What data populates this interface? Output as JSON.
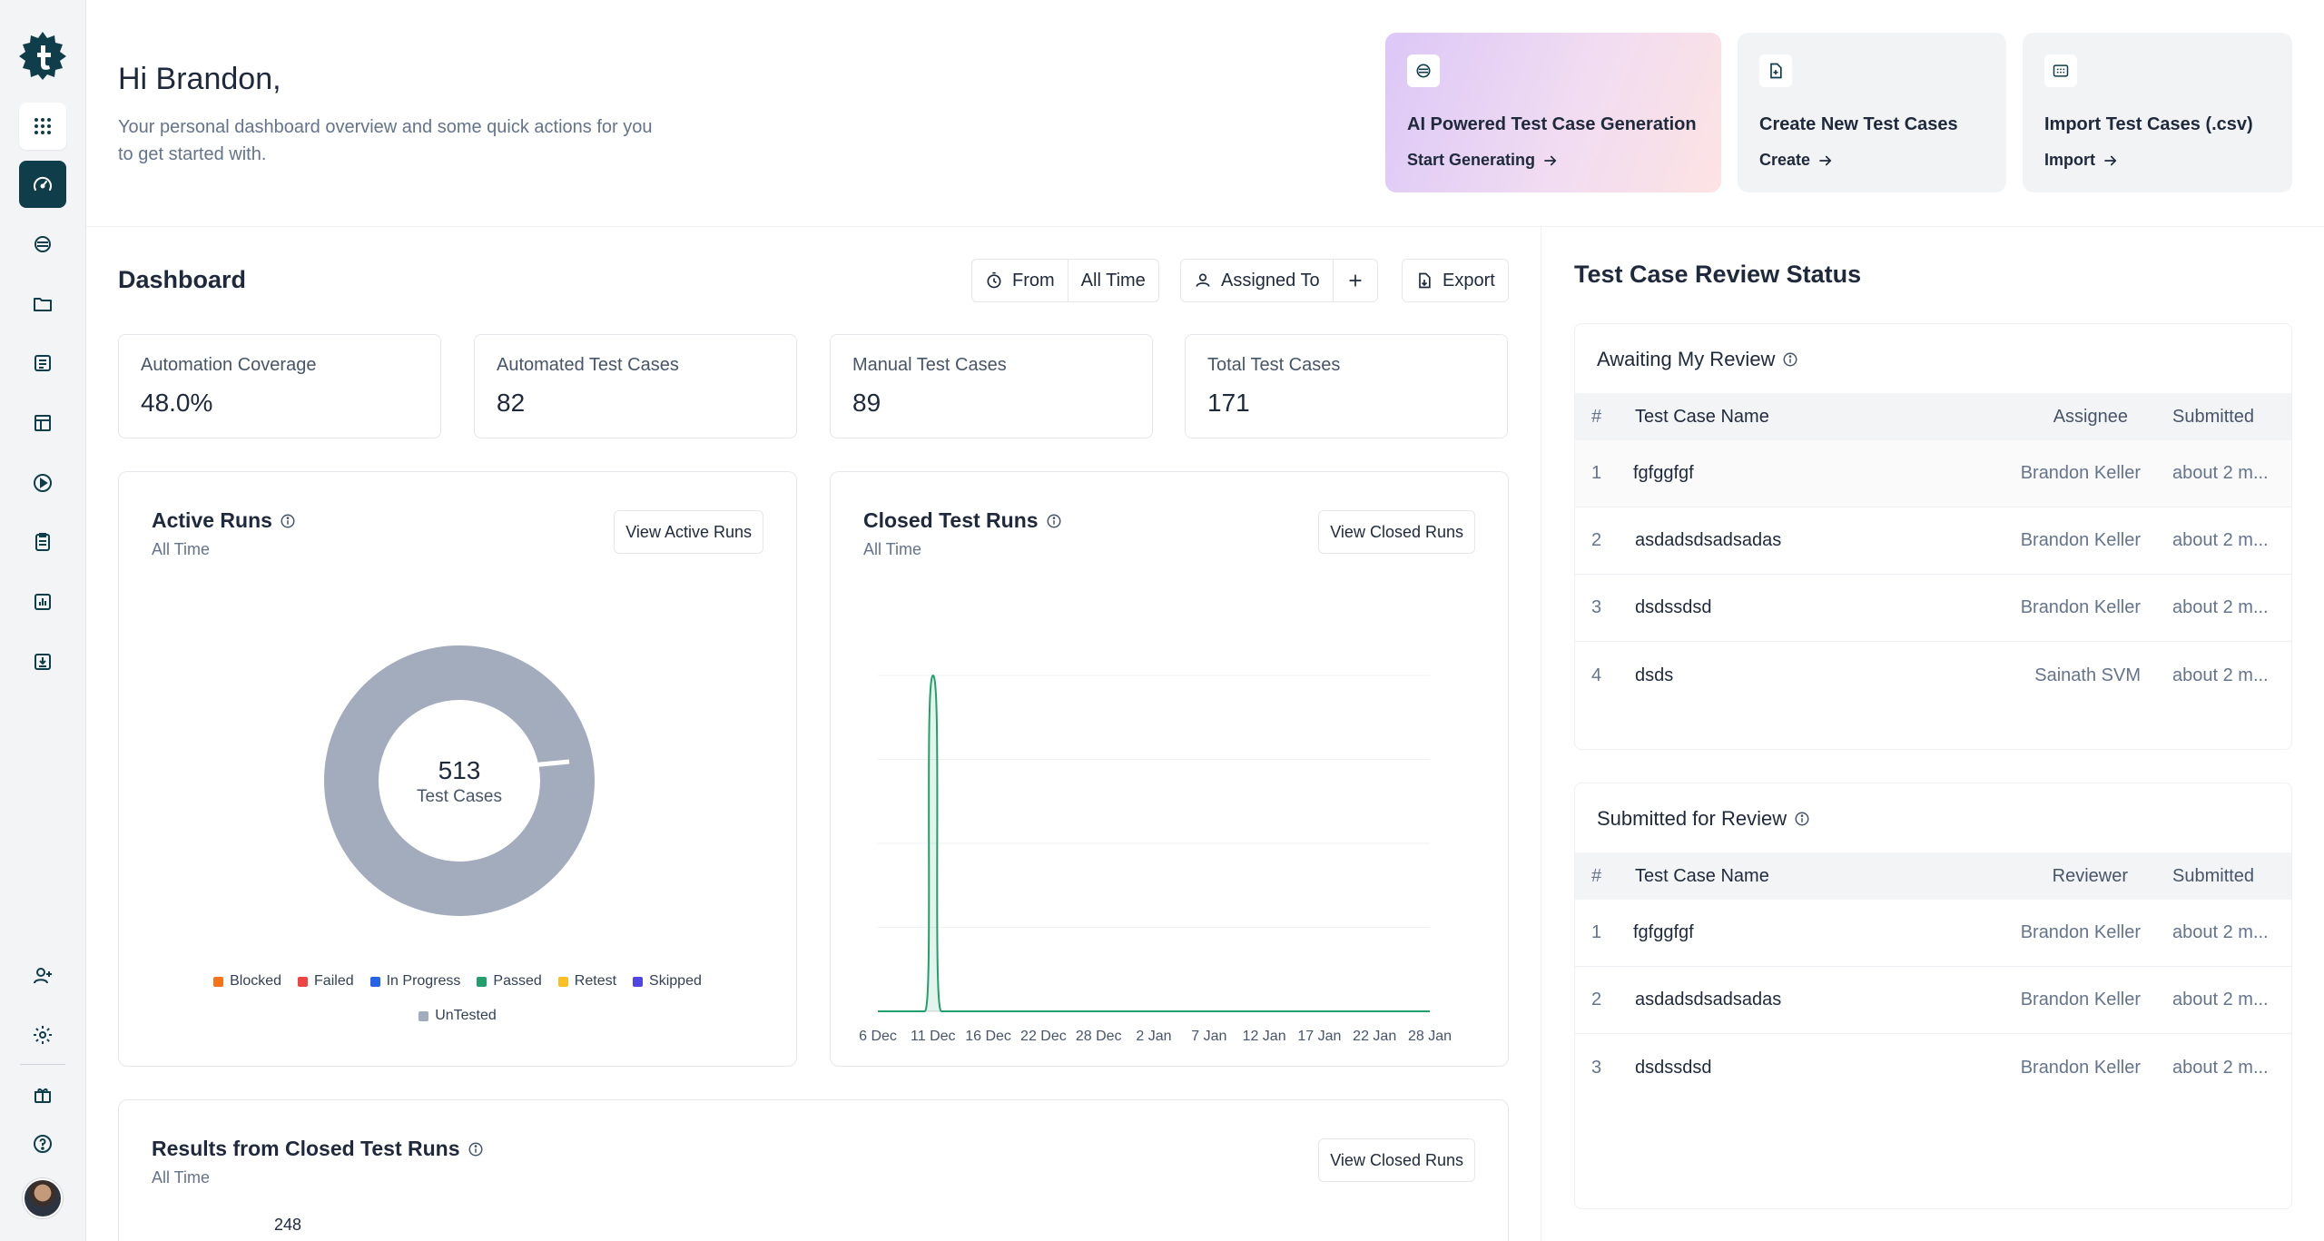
{
  "header": {
    "greeting": "Hi Brandon,",
    "subtitle": "Your personal dashboard overview and some quick actions for you to get started with."
  },
  "quick_actions": [
    {
      "title": "AI Powered Test Case Generation",
      "link": "Start Generating",
      "icon": "ai-icon"
    },
    {
      "title": "Create New Test Cases",
      "link": "Create",
      "icon": "file-plus-icon"
    },
    {
      "title": "Import Test Cases (.csv)",
      "link": "Import",
      "icon": "csv-icon"
    }
  ],
  "dashboard": {
    "title": "Dashboard",
    "from_label": "From",
    "from_value": "All Time",
    "assigned_label": "Assigned To",
    "export_label": "Export"
  },
  "kpis": [
    {
      "label": "Automation Coverage",
      "value": "48.0%"
    },
    {
      "label": "Automated Test Cases",
      "value": "82"
    },
    {
      "label": "Manual Test Cases",
      "value": "89"
    },
    {
      "label": "Total Test Cases",
      "value": "171"
    }
  ],
  "active_runs": {
    "title": "Active Runs",
    "subtitle": "All Time",
    "button": "View Active Runs",
    "center_value": "513",
    "center_label": "Test Cases",
    "legend": [
      {
        "name": "Blocked",
        "color": "#f97316"
      },
      {
        "name": "Failed",
        "color": "#ef4444"
      },
      {
        "name": "In Progress",
        "color": "#2563eb"
      },
      {
        "name": "Passed",
        "color": "#22a06b"
      },
      {
        "name": "Retest",
        "color": "#fbbf24"
      },
      {
        "name": "Skipped",
        "color": "#4f46e5"
      },
      {
        "name": "UnTested",
        "color": "#a3acbd"
      }
    ]
  },
  "closed_runs": {
    "title": "Closed Test Runs",
    "subtitle": "All Time",
    "button": "View Closed Runs",
    "x_labels": [
      "6 Dec",
      "11 Dec",
      "16 Dec",
      "22 Dec",
      "28 Dec",
      "2 Jan",
      "7 Jan",
      "12 Jan",
      "17 Jan",
      "22 Jan",
      "28 Jan"
    ]
  },
  "results_closed": {
    "title": "Results from Closed Test Runs",
    "subtitle": "All Time",
    "button": "View Closed Runs",
    "first_value": "248"
  },
  "chart_data": [
    {
      "type": "pie",
      "categories": [
        "Blocked",
        "Failed",
        "In Progress",
        "Passed",
        "Retest",
        "Skipped",
        "UnTested"
      ],
      "values": [
        0,
        0,
        0,
        0,
        0,
        0,
        513
      ],
      "center_value": 513
    },
    {
      "type": "area",
      "x": [
        "6 Dec",
        "11 Dec",
        "16 Dec",
        "22 Dec",
        "28 Dec",
        "2 Jan",
        "7 Jan",
        "12 Jan",
        "17 Jan",
        "22 Jan",
        "28 Jan"
      ],
      "series": [
        {
          "values": [
            0,
            1,
            0,
            0,
            0,
            0,
            0,
            0,
            0,
            0,
            0
          ]
        }
      ],
      "ylim": [
        0,
        1
      ],
      "grid": true
    }
  ],
  "review": {
    "title": "Test Case Review Status",
    "awaiting": {
      "title": "Awaiting My Review",
      "columns": [
        "#",
        "Test Case Name",
        "Assignee",
        "Submitted"
      ],
      "rows": [
        {
          "num": "1",
          "name": "fgfggfgf",
          "who": "Brandon Keller",
          "submitted": "about 2 m..."
        },
        {
          "num": "2",
          "name": "asdadsdsadsadas",
          "who": "Brandon Keller",
          "submitted": "about 2 m..."
        },
        {
          "num": "3",
          "name": "dsdssdsd",
          "who": "Brandon Keller",
          "submitted": "about 2 m..."
        },
        {
          "num": "4",
          "name": "dsds",
          "who": "Sainath SVM",
          "submitted": "about 2 m..."
        }
      ]
    },
    "submitted": {
      "title": "Submitted for Review",
      "columns": [
        "#",
        "Test Case Name",
        "Reviewer",
        "Submitted"
      ],
      "rows": [
        {
          "num": "1",
          "name": "fgfggfgf",
          "who": "Brandon Keller",
          "submitted": "about 2 m..."
        },
        {
          "num": "2",
          "name": "asdadsdsadsadas",
          "who": "Brandon Keller",
          "submitted": "about 2 m..."
        },
        {
          "num": "3",
          "name": "dsdssdsd",
          "who": "Brandon Keller",
          "submitted": "about 2 m..."
        }
      ]
    }
  },
  "sidebar": {
    "icons": [
      "logo-icon",
      "apps-grid-icon",
      "dashboard-gauge-icon",
      "ai-icon",
      "folder-icon",
      "test-cases-icon",
      "table-icon",
      "play-icon",
      "clipboard-icon",
      "report-chart-icon",
      "import-icon",
      "add-user-icon",
      "settings-icon",
      "gift-icon",
      "help-icon"
    ]
  }
}
